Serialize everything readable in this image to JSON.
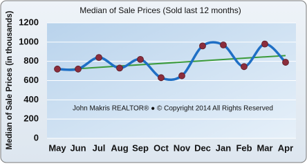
{
  "chart_data": {
    "type": "line",
    "title": "Median of Sale Prices (Sold last 12 months)",
    "y_label": "Median of Sale Prices (in thousands)",
    "annotation": "John Makris REALTOR® ● © Copyright 2014 All Rights Reserved",
    "categories": [
      "May",
      "Jun",
      "Jul",
      "Aug",
      "Sep",
      "Oct",
      "Nov",
      "Dec",
      "Jan",
      "Feb",
      "Mar",
      "Apr"
    ],
    "series": [
      {
        "color": "#1f6fc5",
        "marker_color": "#8b2d3c",
        "values": [
          720,
          720,
          840,
          730,
          820,
          630,
          650,
          960,
          970,
          745,
          980,
          790
        ]
      }
    ],
    "trendline": {
      "color": "#3a9a3a",
      "values": [
        710,
        860
      ]
    },
    "ylim": [
      0,
      1200
    ],
    "yticks": [
      0,
      200,
      400,
      600,
      800,
      1000,
      1200
    ],
    "grid": true,
    "smooth": true
  }
}
